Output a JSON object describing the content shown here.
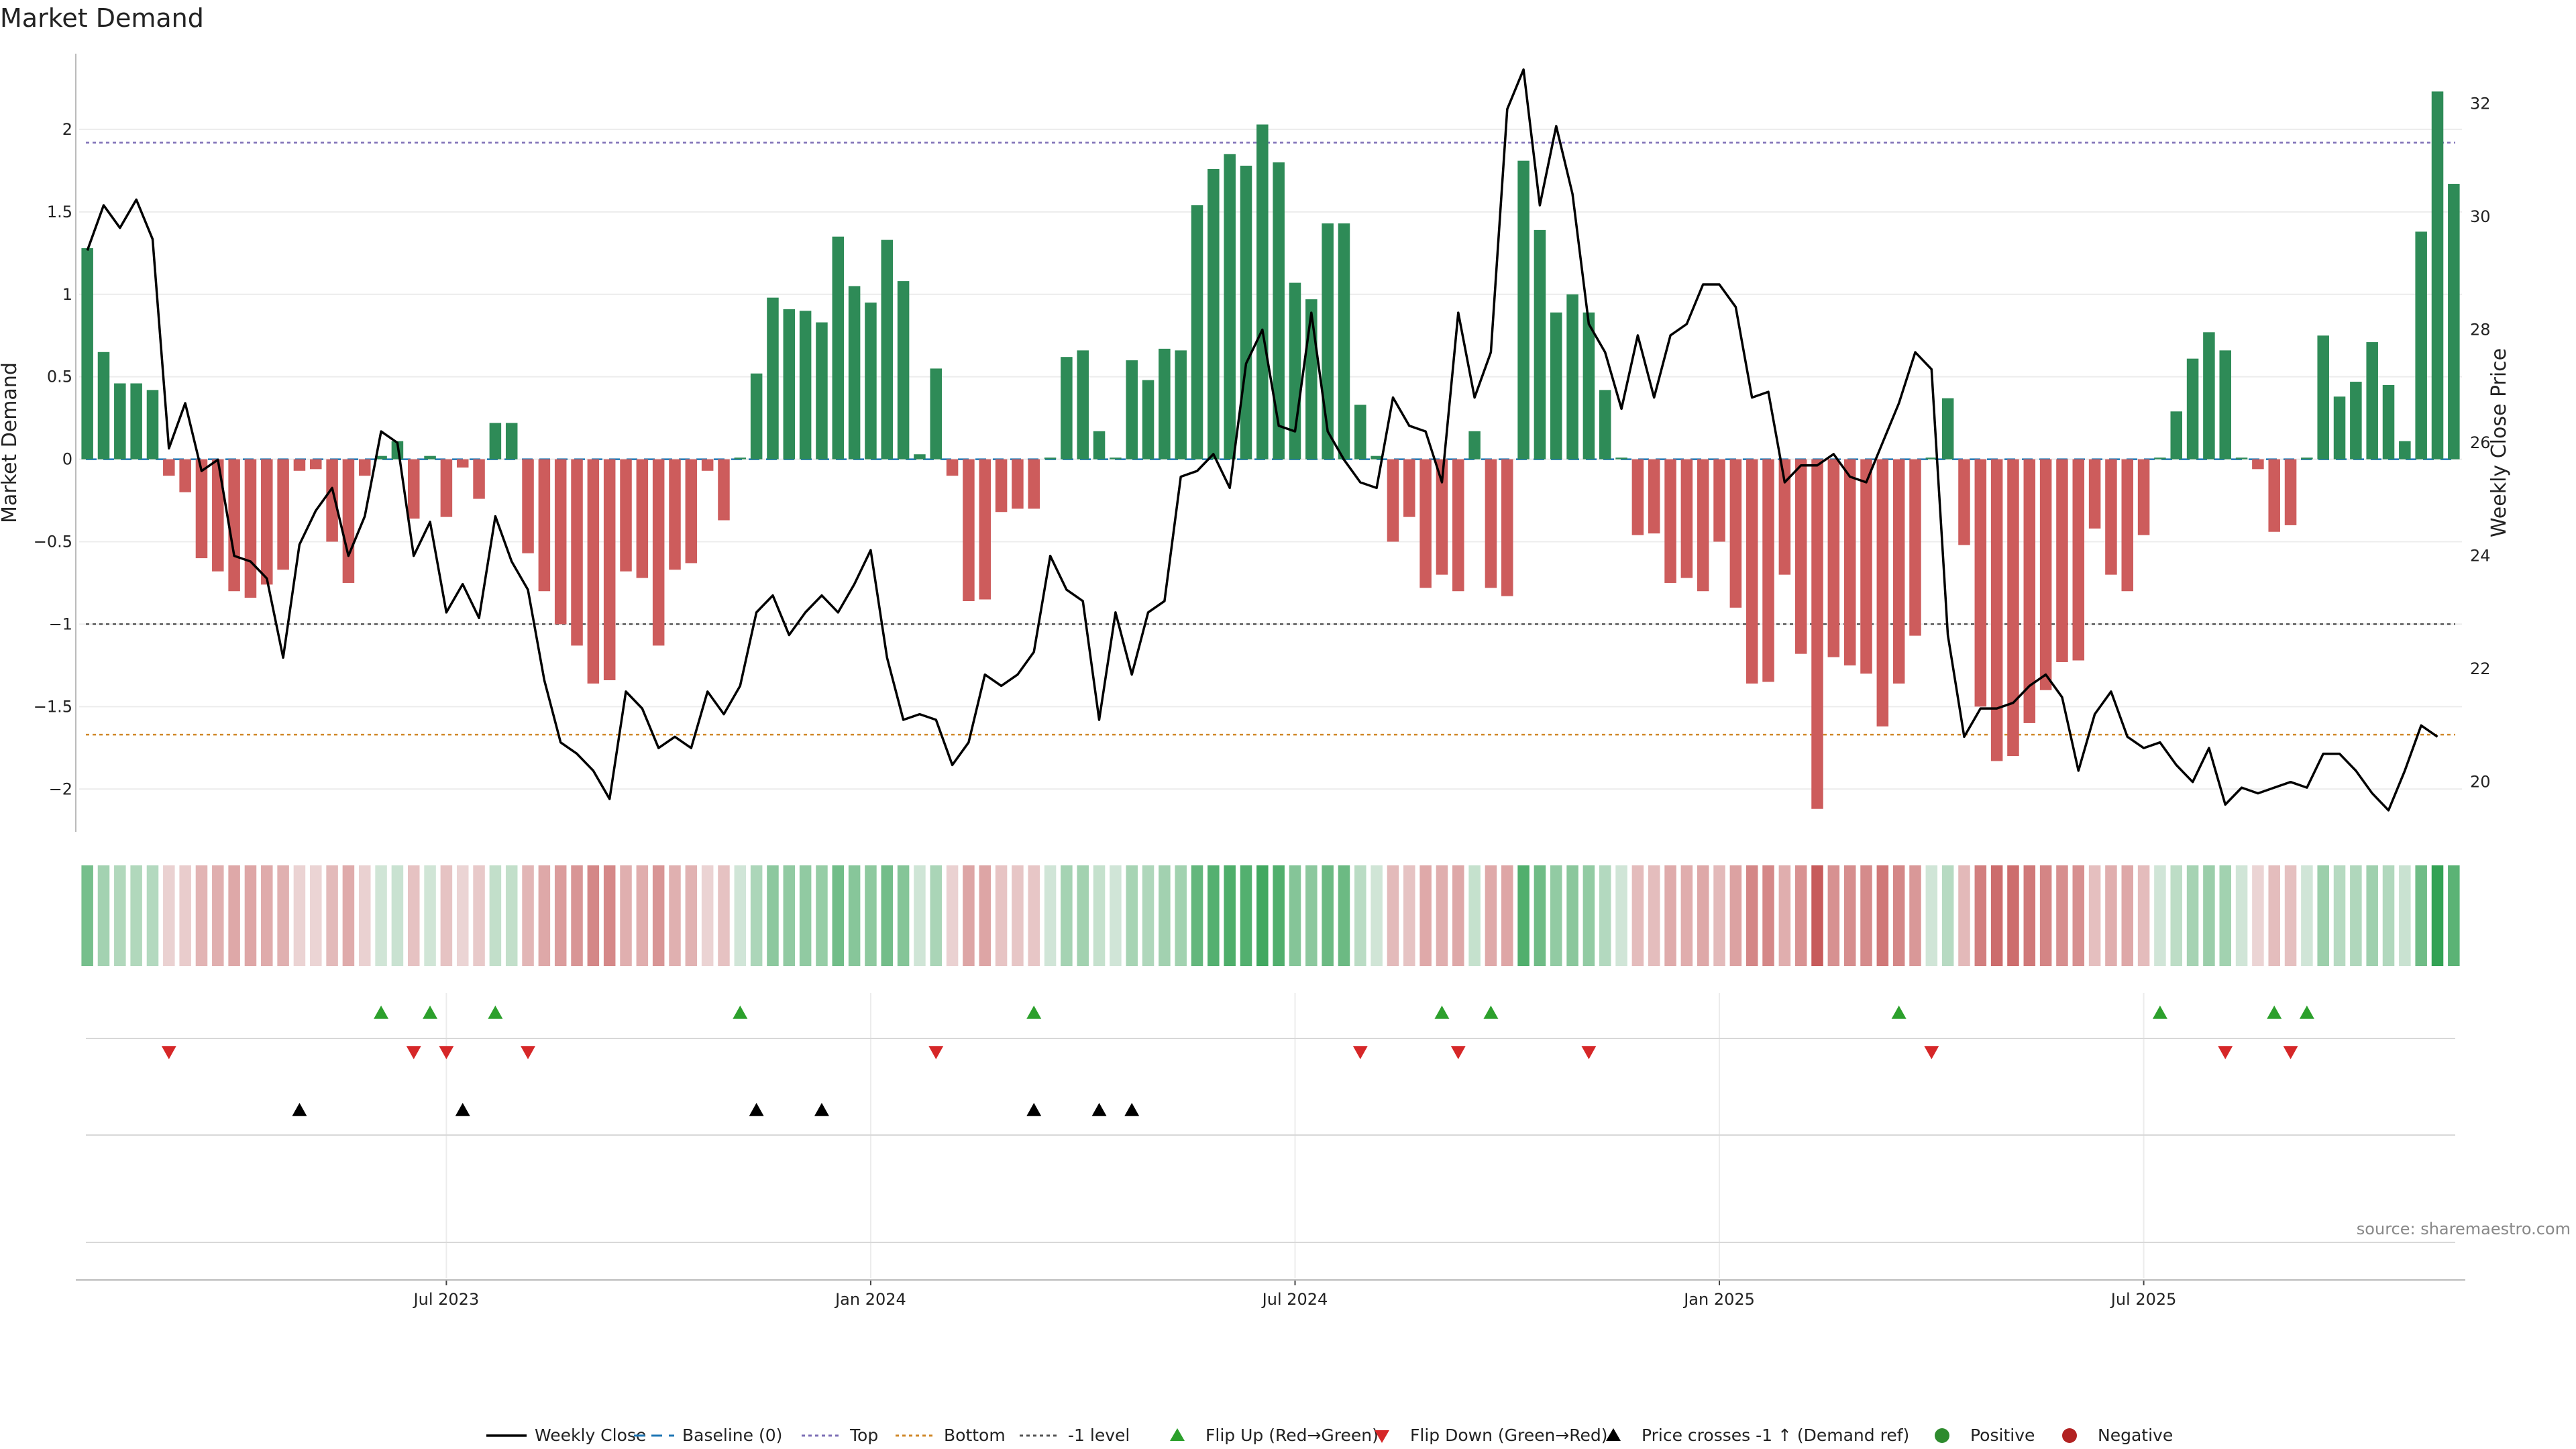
{
  "chart_data": {
    "type": "bar+line",
    "title": "Market Demand",
    "ylabel_left": "Market Demand",
    "ylabel_right": "Weekly Close Price",
    "ylim_left": [
      -2.3,
      2.5
    ],
    "ylim_right": [
      19.0,
      33.0
    ],
    "left_ticks": [
      "2",
      "1.5",
      "1",
      "0.5",
      "0",
      "−0.5",
      "−1",
      "−1.5",
      "−2"
    ],
    "left_tick_values": [
      2,
      1.5,
      1,
      0.5,
      0,
      -0.5,
      -1,
      -1.5,
      -2
    ],
    "right_ticks": [
      "32",
      "30",
      "28",
      "26",
      "24",
      "22",
      "20"
    ],
    "right_tick_values": [
      32,
      30,
      28,
      26,
      24,
      22,
      20
    ],
    "x_ticks": [
      "Jul 2023",
      "Jan 2024",
      "Jul 2024",
      "Jan 2025",
      "Jul 2025"
    ],
    "x_tick_weeks": [
      22,
      48,
      74,
      100,
      126
    ],
    "reference_lines": {
      "top": 1.92,
      "minus_one": -1.0,
      "bottom": -1.67
    },
    "demand": [
      1.28,
      0.65,
      0.46,
      0.46,
      0.42,
      -0.1,
      -0.2,
      -0.6,
      -0.68,
      -0.8,
      -0.84,
      -0.76,
      -0.67,
      -0.07,
      -0.06,
      -0.5,
      -0.75,
      -0.1,
      0.02,
      0.11,
      -0.36,
      0.02,
      -0.35,
      -0.05,
      -0.24,
      0.22,
      0.22,
      -0.57,
      -0.8,
      -1.0,
      -1.13,
      -1.36,
      -1.34,
      -0.68,
      -0.72,
      -1.13,
      -0.67,
      -0.63,
      -0.07,
      -0.37,
      0.01,
      0.52,
      0.98,
      0.91,
      0.9,
      0.83,
      1.35,
      1.05,
      0.95,
      1.33,
      1.08,
      0.03,
      0.55,
      -0.1,
      -0.86,
      -0.85,
      -0.32,
      -0.3,
      -0.3,
      0.01,
      0.62,
      0.66,
      0.17,
      0.01,
      0.6,
      0.48,
      0.67,
      0.66,
      1.54,
      1.76,
      1.85,
      1.78,
      2.03,
      1.8,
      1.07,
      0.97,
      1.43,
      1.43,
      0.33,
      0.02,
      -0.5,
      -0.35,
      -0.78,
      -0.7,
      -0.8,
      0.17,
      -0.78,
      -0.83,
      1.81,
      1.39,
      0.89,
      1.0,
      0.89,
      0.42,
      0.01,
      -0.46,
      -0.45,
      -0.75,
      -0.72,
      -0.8,
      -0.5,
      -0.9,
      -1.36,
      -1.35,
      -0.7,
      -1.18,
      -2.12,
      -1.2,
      -1.25,
      -1.3,
      -1.62,
      -1.36,
      -1.07,
      0.01,
      0.37,
      -0.52,
      -1.5,
      -1.83,
      -1.8,
      -1.6,
      -1.4,
      -1.23,
      -1.22,
      -0.42,
      -0.7,
      -0.8,
      -0.46,
      0.01,
      0.29,
      0.61,
      0.77,
      0.66,
      0.01,
      -0.06,
      -0.44,
      -0.4,
      0.01,
      0.75,
      0.38,
      0.47,
      0.71,
      0.45,
      0.11,
      1.38,
      2.23,
      1.67
    ],
    "weekly_close": [
      29.4,
      30.2,
      29.8,
      30.3,
      29.6,
      25.9,
      26.7,
      25.5,
      25.7,
      24.0,
      23.9,
      23.6,
      22.2,
      24.2,
      24.8,
      25.2,
      24.0,
      24.7,
      26.2,
      26.0,
      24.0,
      24.6,
      23.0,
      23.5,
      22.9,
      24.7,
      23.9,
      23.4,
      21.8,
      20.7,
      20.5,
      20.2,
      19.7,
      21.6,
      21.3,
      20.6,
      20.8,
      20.6,
      21.6,
      21.2,
      21.7,
      23.0,
      23.3,
      22.6,
      23.0,
      23.3,
      23.0,
      23.5,
      24.1,
      22.2,
      21.1,
      21.2,
      21.1,
      20.3,
      20.7,
      21.9,
      21.7,
      21.9,
      22.3,
      24.0,
      23.4,
      23.2,
      21.1,
      23.0,
      21.9,
      23.0,
      23.2,
      25.4,
      25.5,
      25.8,
      25.2,
      27.4,
      28.0,
      26.3,
      26.2,
      28.3,
      26.2,
      25.7,
      25.3,
      25.2,
      26.8,
      26.3,
      26.2,
      25.3,
      28.3,
      26.8,
      27.6,
      31.9,
      32.6,
      30.2,
      31.6,
      30.4,
      28.1,
      27.6,
      26.6,
      27.9,
      26.8,
      27.9,
      28.1,
      28.8,
      28.8,
      28.4,
      26.8,
      26.9,
      25.3,
      25.6,
      25.6,
      25.8,
      25.4,
      25.3,
      26.0,
      26.7,
      27.6,
      27.3,
      22.6,
      20.8,
      21.3,
      21.3,
      21.4,
      21.7,
      21.9,
      21.5,
      20.2,
      21.2,
      21.6,
      20.8,
      20.6,
      20.7,
      20.3,
      20.0,
      20.6,
      19.6,
      19.9,
      19.8,
      19.9,
      20.0,
      19.9,
      20.5,
      20.5,
      20.2,
      19.8,
      19.5,
      20.2,
      21.0,
      20.8
    ],
    "flip_up_weeks": [
      18,
      21,
      25,
      40,
      58,
      83,
      86,
      111,
      127,
      134,
      136
    ],
    "flip_down_weeks": [
      5,
      20,
      22,
      27,
      52,
      78,
      84,
      92,
      113,
      131,
      135
    ],
    "price_cross_weeks": [
      13,
      23,
      41,
      45,
      58,
      62,
      64
    ],
    "legend": [
      {
        "label": "Weekly Close",
        "kind": "line",
        "color": "#000000"
      },
      {
        "label": "Baseline (0)",
        "kind": "dash",
        "color": "#1f77b4"
      },
      {
        "label": "Top",
        "kind": "dot",
        "color": "#7e6fb6"
      },
      {
        "label": "Bottom",
        "kind": "dot",
        "color": "#d0892a"
      },
      {
        "label": "-1 level",
        "kind": "dot",
        "color": "#555555"
      },
      {
        "label": "Flip Up (Red→Green)",
        "kind": "tri-up",
        "color": "#2ca02c"
      },
      {
        "label": "Flip Down (Green→Red)",
        "kind": "tri-down",
        "color": "#d62728"
      },
      {
        "label": "Price crosses -1 ↑ (Demand ref)",
        "kind": "tri-up",
        "color": "#000000"
      },
      {
        "label": "Positive",
        "kind": "circle",
        "color": "#2e8b2e"
      },
      {
        "label": "Negative",
        "kind": "circle",
        "color": "#b22222"
      }
    ],
    "source": "source: sharemaestro.com"
  },
  "colors": {
    "positive_bar": "#2e8b57",
    "negative_bar": "#cd5c5c",
    "price_line": "#000000",
    "top_line": "#7e6fb6",
    "bottom_line": "#d0892a",
    "minus_one_line": "#555555",
    "baseline": "#1f77b4",
    "flip_up": "#2ca02c",
    "flip_down": "#d62728",
    "cross": "#000000"
  }
}
